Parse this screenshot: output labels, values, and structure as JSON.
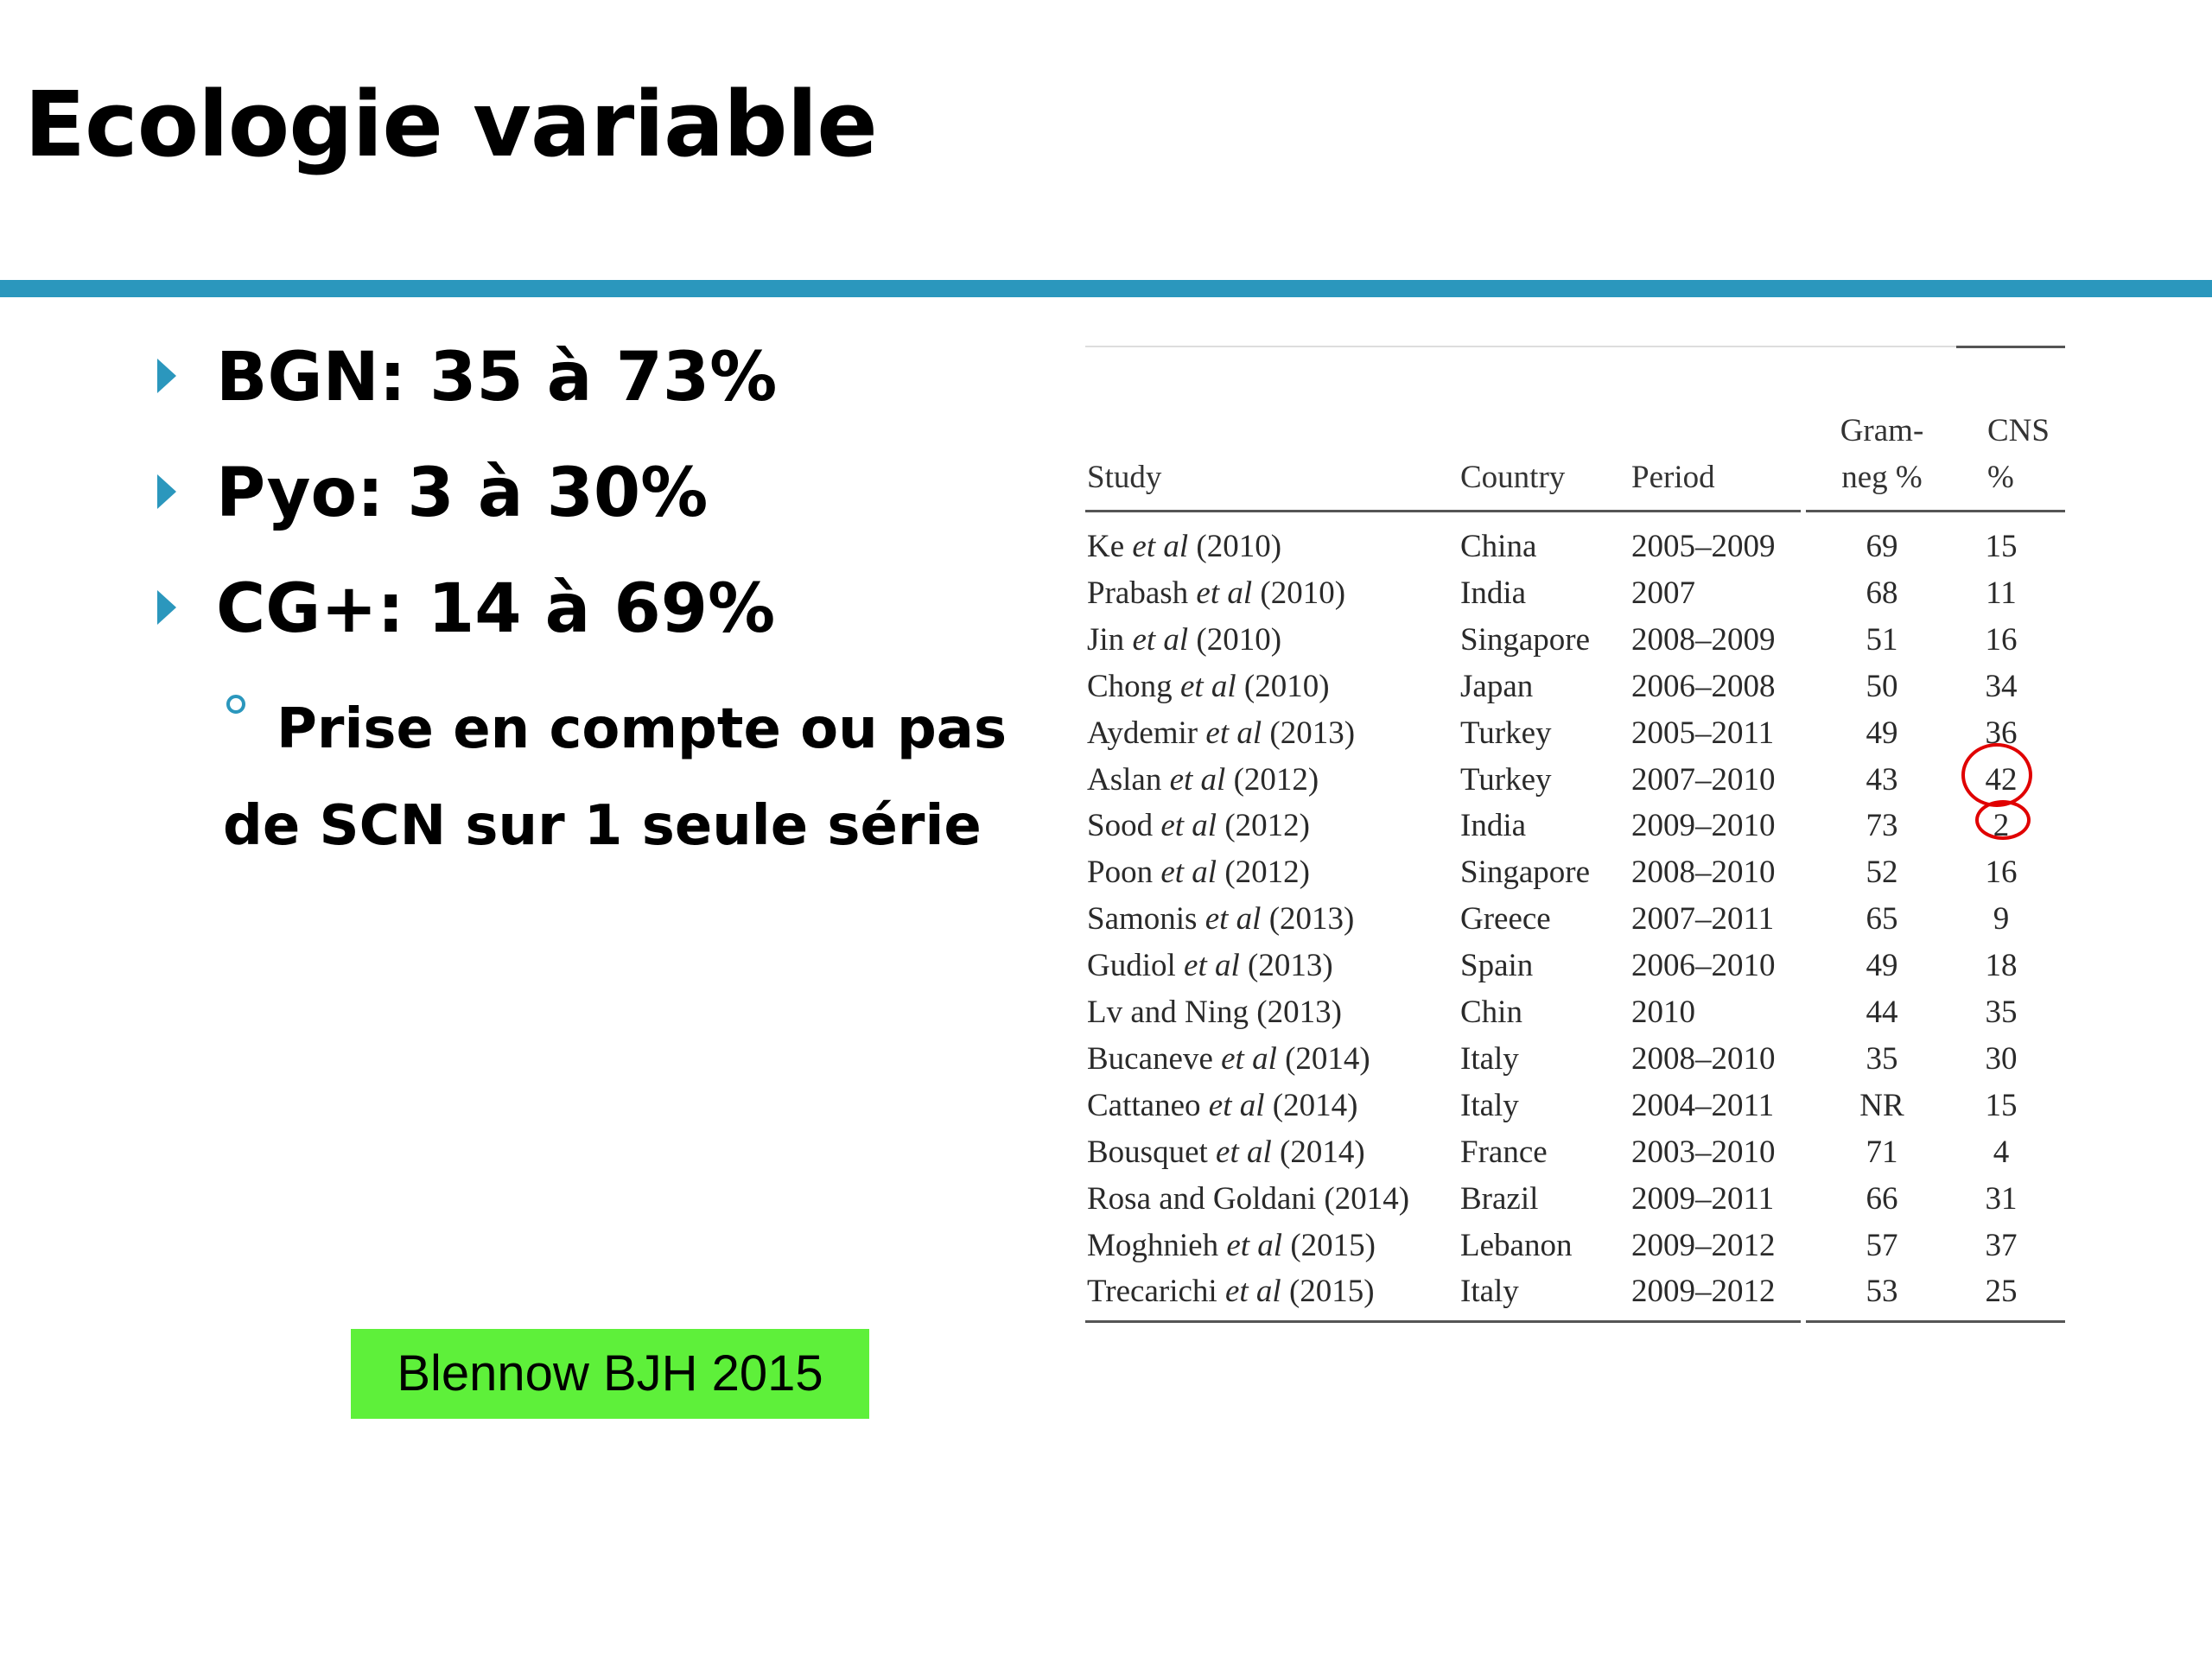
{
  "slide": {
    "title": "Ecologie variable",
    "bullets": [
      {
        "text": "BGN: 35 à 73%"
      },
      {
        "text": "Pyo: 3 à 30%"
      },
      {
        "text": "CG+: 14 à 69%"
      }
    ],
    "sub_bullet": {
      "text": "Prise en compte ou pas de SCN sur 1 seule série"
    },
    "source": "Blennow BJH 2015",
    "colors": {
      "accent": "#2b97bd",
      "source_badge": "#5ef03a",
      "highlight_circle": "#e00000"
    }
  },
  "table": {
    "headers": {
      "study": "Study",
      "country": "Country",
      "period": "Period",
      "gram_neg_line1": "Gram-",
      "gram_neg_line2": "neg %",
      "cns_line1": "CNS",
      "cns_line2": "%"
    },
    "rows": [
      {
        "author": "Ke",
        "etal": "et al",
        "year": "(2010)",
        "country": "China",
        "period": "2005–2009",
        "gram_neg": "69",
        "cns": "15"
      },
      {
        "author": "Prabash",
        "etal": "et al",
        "year": "(2010)",
        "country": "India",
        "period": "2007",
        "gram_neg": "68",
        "cns": "11"
      },
      {
        "author": "Jin",
        "etal": "et al",
        "year": "(2010)",
        "country": "Singapore",
        "period": "2008–2009",
        "gram_neg": "51",
        "cns": "16"
      },
      {
        "author": "Chong",
        "etal": "et al",
        "year": "(2010)",
        "country": "Japan",
        "period": "2006–2008",
        "gram_neg": "50",
        "cns": "34"
      },
      {
        "author": "Aydemir",
        "etal": "et al",
        "year": "(2013)",
        "country": "Turkey",
        "period": "2005–2011",
        "gram_neg": "49",
        "cns": "36"
      },
      {
        "author": "Aslan",
        "etal": "et al",
        "year": "(2012)",
        "country": "Turkey",
        "period": "2007–2010",
        "gram_neg": "43",
        "cns": "42"
      },
      {
        "author": "Sood",
        "etal": "et al",
        "year": "(2012)",
        "country": "India",
        "period": "2009–2010",
        "gram_neg": "73",
        "cns": "2"
      },
      {
        "author": "Poon",
        "etal": "et al",
        "year": "(2012)",
        "country": "Singapore",
        "period": "2008–2010",
        "gram_neg": "52",
        "cns": "16"
      },
      {
        "author": "Samonis",
        "etal": "et al",
        "year": "(2013)",
        "country": "Greece",
        "period": "2007–2011",
        "gram_neg": "65",
        "cns": "9"
      },
      {
        "author": "Gudiol",
        "etal": "et al",
        "year": "(2013)",
        "country": "Spain",
        "period": "2006–2010",
        "gram_neg": "49",
        "cns": "18"
      },
      {
        "author": "Lv and Ning",
        "etal": "",
        "year": "(2013)",
        "country": "Chin",
        "period": "2010",
        "gram_neg": "44",
        "cns": "35"
      },
      {
        "author": "Bucaneve",
        "etal": "et al",
        "year": "(2014)",
        "country": "Italy",
        "period": "2008–2010",
        "gram_neg": "35",
        "cns": "30"
      },
      {
        "author": "Cattaneo",
        "etal": "et al",
        "year": "(2014)",
        "country": "Italy",
        "period": "2004–2011",
        "gram_neg": "NR",
        "cns": "15"
      },
      {
        "author": "Bousquet",
        "etal": "et al",
        "year": "(2014)",
        "country": "France",
        "period": "2003–2010",
        "gram_neg": "71",
        "cns": "4"
      },
      {
        "author": "Rosa and Goldani",
        "etal": "",
        "year": "(2014)",
        "country": "Brazil",
        "period": "2009–2011",
        "gram_neg": "66",
        "cns": "31"
      },
      {
        "author": "Moghnieh",
        "etal": "et al",
        "year": "(2015)",
        "country": "Lebanon",
        "period": "2009–2012",
        "gram_neg": "57",
        "cns": "37"
      },
      {
        "author": "Trecarichi",
        "etal": "et al",
        "year": "(2015)",
        "country": "Italy",
        "period": "2009–2012",
        "gram_neg": "53",
        "cns": "25"
      }
    ]
  }
}
